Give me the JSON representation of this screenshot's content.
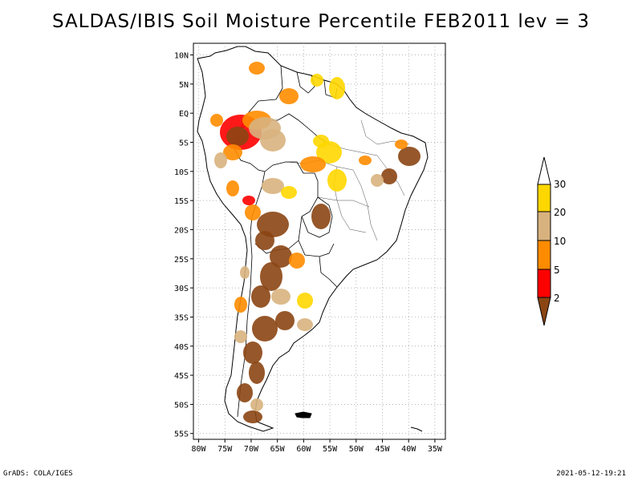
{
  "title": "SALDAS/IBIS Soil Moisture Percentile FEB2011 lev = 3",
  "footer": {
    "left": "GrADS: COLA/IGES",
    "right": "2021-05-12-19:21"
  },
  "axes": {
    "lat_ticks": [
      "10N",
      "5N",
      "EQ",
      "5S",
      "10S",
      "15S",
      "20S",
      "25S",
      "30S",
      "35S",
      "40S",
      "45S",
      "50S",
      "55S"
    ],
    "lat_values": [
      10,
      5,
      0,
      -5,
      -10,
      -15,
      -20,
      -25,
      -30,
      -35,
      -40,
      -45,
      -50,
      -55
    ],
    "lon_ticks": [
      "80W",
      "75W",
      "70W",
      "65W",
      "60W",
      "55W",
      "50W",
      "45W",
      "40W",
      "35W"
    ],
    "lon_values": [
      -80,
      -75,
      -70,
      -65,
      -60,
      -55,
      -50,
      -45,
      -40,
      -35
    ],
    "lat_range": [
      -56,
      12
    ],
    "lon_range": [
      -81,
      -33
    ],
    "grid": "dotted"
  },
  "legend": {
    "labels": [
      "30",
      "20",
      "10",
      "5",
      "2"
    ],
    "colors": {
      "above_30": "#ffffff",
      "20_30": "#ffd700",
      "10_20": "#d8b27e",
      "5_10": "#ff8c00",
      "2_5": "#ff0000",
      "below_2": "#8b4513"
    }
  },
  "map": {
    "region": "South America",
    "field": "Soil Moisture Percentile",
    "land_color": "#ffffff",
    "border_color": "#000000"
  }
}
